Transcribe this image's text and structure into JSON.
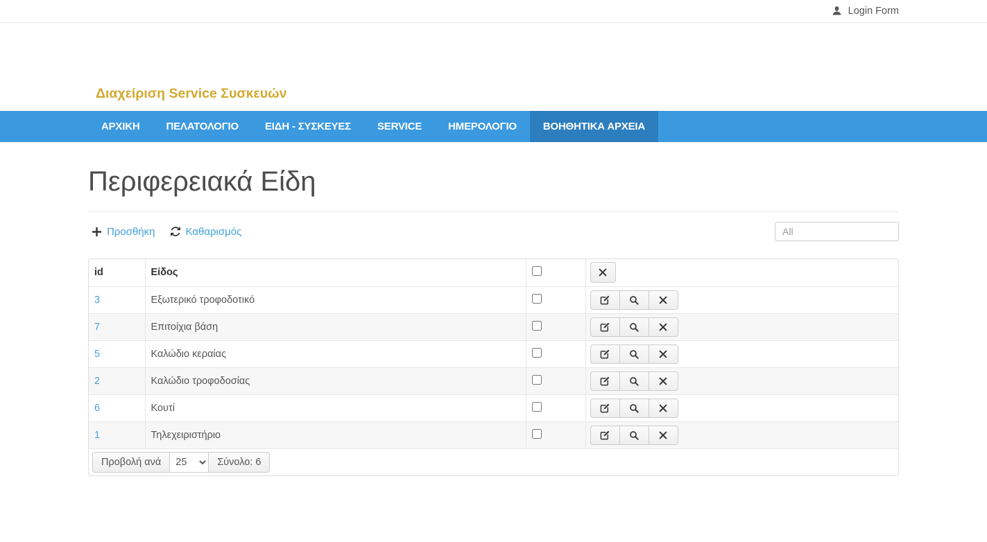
{
  "topbar": {
    "login_label": "Login Form"
  },
  "brand": {
    "title": "Διαχείριση Service Συσκευών"
  },
  "nav": {
    "items": [
      {
        "id": "archiki",
        "label": "ΑΡΧΙΚΗ",
        "active": false
      },
      {
        "id": "pelatologio",
        "label": "ΠΕΛΑΤΟΛΟΓΙΟ",
        "active": false
      },
      {
        "id": "eidi-syskeves",
        "label": "ΕΙΔΗ - ΣΥΣΚΕΥΕΣ",
        "active": false
      },
      {
        "id": "service",
        "label": "SERVICE",
        "active": false
      },
      {
        "id": "imerologio",
        "label": "ΗΜΕΡΟΛΟΓΙΟ",
        "active": false
      },
      {
        "id": "voithitika-archeia",
        "label": "ΒΟΗΘΗΤΙΚΑ ΑΡΧΕΙΑ",
        "active": true
      }
    ]
  },
  "page": {
    "title": "Περιφερειακά Είδη"
  },
  "toolbar": {
    "add_label": "Προσθήκη",
    "clear_label": "Καθαρισμός",
    "search_placeholder": "All"
  },
  "table": {
    "headers": {
      "id": "id",
      "item": "Είδος"
    },
    "rows": [
      {
        "id": "3",
        "item": "Εξωτερικό τροφοδοτικό"
      },
      {
        "id": "7",
        "item": "Επιτοίχια βάση"
      },
      {
        "id": "5",
        "item": "Καλώδιο κεραίας"
      },
      {
        "id": "2",
        "item": "Καλώδιο τροφοδοσίας"
      },
      {
        "id": "6",
        "item": "Κουτί"
      },
      {
        "id": "1",
        "item": "Τηλεχειριστήριο"
      }
    ]
  },
  "pagination": {
    "per_page_label": "Προβολή ανά",
    "per_page_value": "25",
    "total_label": "Σύνολο: 6"
  },
  "colors": {
    "brand_gold": "#d2a92f",
    "nav_blue": "#3b99e0",
    "nav_active_blue": "#2d7ebf",
    "link_blue": "#41a0dc",
    "id_link_blue": "#4aa3df",
    "stripe_gray": "#f7f7f7"
  }
}
